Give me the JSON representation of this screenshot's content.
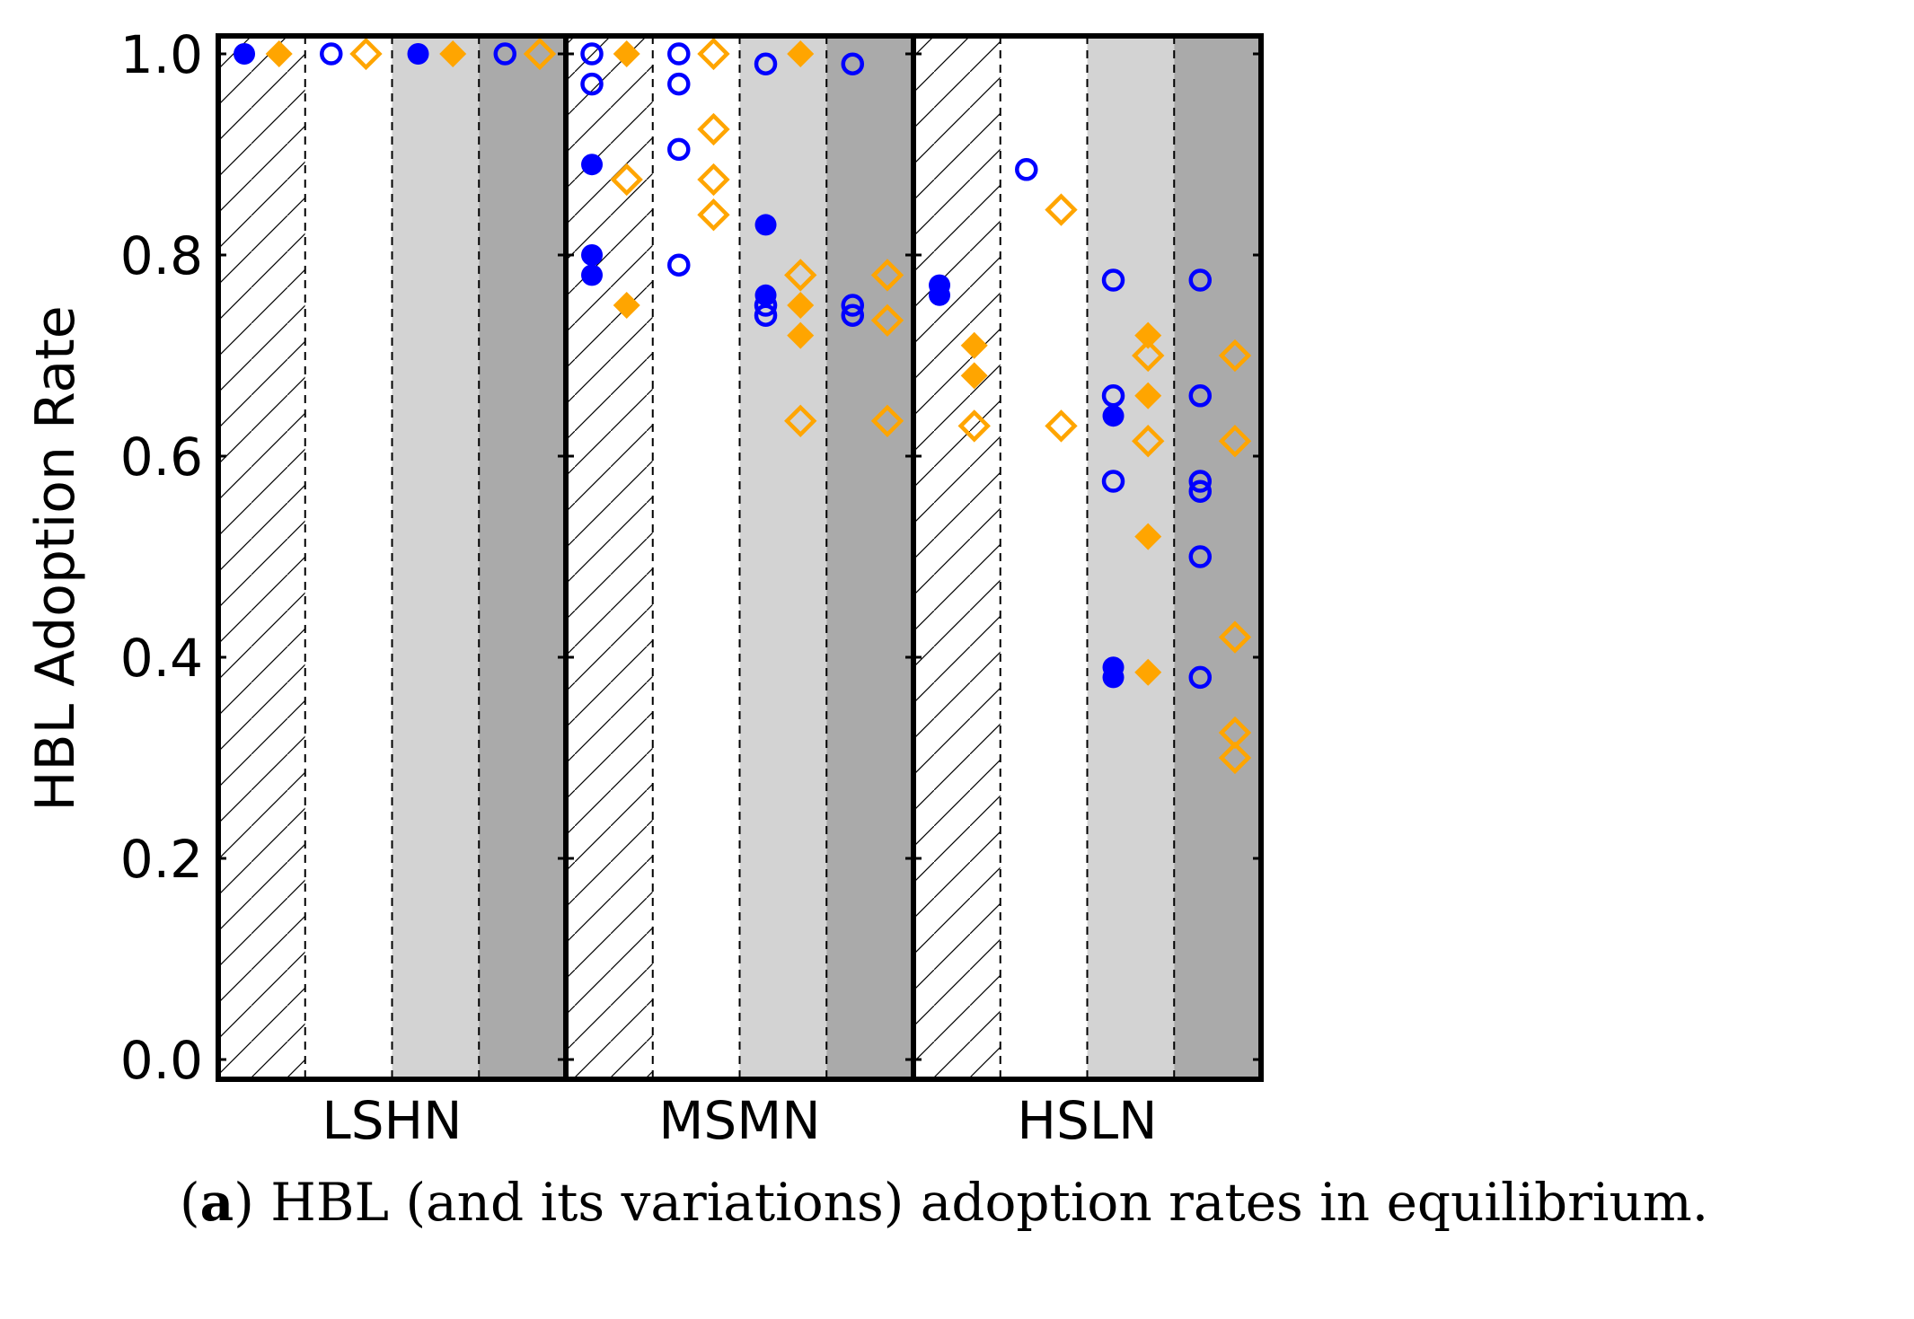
{
  "chart_data": {
    "type": "scatter",
    "ylabel": "HBL Adoption Rate",
    "ylim": [
      0.0,
      1.0
    ],
    "yticks": [
      "0.0",
      "0.2",
      "0.4",
      "0.6",
      "0.8",
      "1.0"
    ],
    "groups": [
      "LSHN",
      "MSMN",
      "HSLN"
    ],
    "subcolumns_per_group": 4,
    "subcolumn_backgrounds": [
      "hatched",
      "white",
      "#d3d3d3",
      "#aaaaaa"
    ],
    "series": [
      {
        "name": "blue filled",
        "color": "#0000ff",
        "marker": "circle",
        "filled": true,
        "points": [
          {
            "group": "LSHN",
            "sub": 0,
            "y": 1.0
          },
          {
            "group": "LSHN",
            "sub": 2,
            "y": 1.0
          },
          {
            "group": "MSMN",
            "sub": 0,
            "y": 0.89
          },
          {
            "group": "MSMN",
            "sub": 0,
            "y": 0.8
          },
          {
            "group": "MSMN",
            "sub": 0,
            "y": 0.78
          },
          {
            "group": "MSMN",
            "sub": 2,
            "y": 0.83
          },
          {
            "group": "MSMN",
            "sub": 2,
            "y": 0.76
          },
          {
            "group": "HSLN",
            "sub": 0,
            "y": 0.77
          },
          {
            "group": "HSLN",
            "sub": 0,
            "y": 0.76
          },
          {
            "group": "HSLN",
            "sub": 2,
            "y": 0.64
          },
          {
            "group": "HSLN",
            "sub": 2,
            "y": 0.39
          },
          {
            "group": "HSLN",
            "sub": 2,
            "y": 0.38
          }
        ]
      },
      {
        "name": "orange filled",
        "color": "#ffa500",
        "marker": "diamond",
        "filled": true,
        "points": [
          {
            "group": "LSHN",
            "sub": 0,
            "y": 1.0
          },
          {
            "group": "LSHN",
            "sub": 2,
            "y": 1.0
          },
          {
            "group": "MSMN",
            "sub": 0,
            "y": 1.0
          },
          {
            "group": "MSMN",
            "sub": 0,
            "y": 0.75
          },
          {
            "group": "MSMN",
            "sub": 2,
            "y": 1.0
          },
          {
            "group": "MSMN",
            "sub": 2,
            "y": 0.75
          },
          {
            "group": "MSMN",
            "sub": 2,
            "y": 0.72
          },
          {
            "group": "HSLN",
            "sub": 0,
            "y": 0.71
          },
          {
            "group": "HSLN",
            "sub": 0,
            "y": 0.68
          },
          {
            "group": "HSLN",
            "sub": 2,
            "y": 0.72
          },
          {
            "group": "HSLN",
            "sub": 2,
            "y": 0.66
          },
          {
            "group": "HSLN",
            "sub": 2,
            "y": 0.52
          },
          {
            "group": "HSLN",
            "sub": 2,
            "y": 0.385
          }
        ]
      },
      {
        "name": "blue open",
        "color": "#0000ff",
        "marker": "circle",
        "filled": false,
        "points": [
          {
            "group": "LSHN",
            "sub": 1,
            "y": 1.0
          },
          {
            "group": "LSHN",
            "sub": 3,
            "y": 1.0
          },
          {
            "group": "MSMN",
            "sub": 0,
            "y": 1.0
          },
          {
            "group": "MSMN",
            "sub": 0,
            "y": 0.97
          },
          {
            "group": "MSMN",
            "sub": 1,
            "y": 1.0
          },
          {
            "group": "MSMN",
            "sub": 1,
            "y": 0.97
          },
          {
            "group": "MSMN",
            "sub": 1,
            "y": 0.905
          },
          {
            "group": "MSMN",
            "sub": 1,
            "y": 0.79
          },
          {
            "group": "MSMN",
            "sub": 2,
            "y": 0.99
          },
          {
            "group": "MSMN",
            "sub": 2,
            "y": 0.75
          },
          {
            "group": "MSMN",
            "sub": 2,
            "y": 0.74
          },
          {
            "group": "MSMN",
            "sub": 3,
            "y": 0.99
          },
          {
            "group": "MSMN",
            "sub": 3,
            "y": 0.75
          },
          {
            "group": "MSMN",
            "sub": 3,
            "y": 0.74
          },
          {
            "group": "HSLN",
            "sub": 1,
            "y": 0.885
          },
          {
            "group": "HSLN",
            "sub": 2,
            "y": 0.775
          },
          {
            "group": "HSLN",
            "sub": 2,
            "y": 0.66
          },
          {
            "group": "HSLN",
            "sub": 2,
            "y": 0.575
          },
          {
            "group": "HSLN",
            "sub": 3,
            "y": 0.775
          },
          {
            "group": "HSLN",
            "sub": 3,
            "y": 0.66
          },
          {
            "group": "HSLN",
            "sub": 3,
            "y": 0.575
          },
          {
            "group": "HSLN",
            "sub": 3,
            "y": 0.565
          },
          {
            "group": "HSLN",
            "sub": 3,
            "y": 0.5
          },
          {
            "group": "HSLN",
            "sub": 3,
            "y": 0.38
          }
        ]
      },
      {
        "name": "orange open",
        "color": "#ffa500",
        "marker": "diamond",
        "filled": false,
        "points": [
          {
            "group": "LSHN",
            "sub": 1,
            "y": 1.0
          },
          {
            "group": "LSHN",
            "sub": 3,
            "y": 1.0
          },
          {
            "group": "MSMN",
            "sub": 0,
            "y": 0.875
          },
          {
            "group": "MSMN",
            "sub": 1,
            "y": 1.0
          },
          {
            "group": "MSMN",
            "sub": 1,
            "y": 0.925
          },
          {
            "group": "MSMN",
            "sub": 1,
            "y": 0.875
          },
          {
            "group": "MSMN",
            "sub": 1,
            "y": 0.84
          },
          {
            "group": "MSMN",
            "sub": 2,
            "y": 0.78
          },
          {
            "group": "MSMN",
            "sub": 2,
            "y": 0.635
          },
          {
            "group": "MSMN",
            "sub": 3,
            "y": 0.78
          },
          {
            "group": "MSMN",
            "sub": 3,
            "y": 0.735
          },
          {
            "group": "MSMN",
            "sub": 3,
            "y": 0.635
          },
          {
            "group": "HSLN",
            "sub": 0,
            "y": 0.63
          },
          {
            "group": "HSLN",
            "sub": 1,
            "y": 0.845
          },
          {
            "group": "HSLN",
            "sub": 1,
            "y": 0.63
          },
          {
            "group": "HSLN",
            "sub": 2,
            "y": 0.7
          },
          {
            "group": "HSLN",
            "sub": 2,
            "y": 0.615
          },
          {
            "group": "HSLN",
            "sub": 3,
            "y": 0.7
          },
          {
            "group": "HSLN",
            "sub": 3,
            "y": 0.615
          },
          {
            "group": "HSLN",
            "sub": 3,
            "y": 0.42
          },
          {
            "group": "HSLN",
            "sub": 3,
            "y": 0.325
          },
          {
            "group": "HSLN",
            "sub": 3,
            "y": 0.3
          }
        ]
      }
    ]
  },
  "caption": {
    "prefix": "(",
    "letter": "a",
    "text": ") HBL (and its variations) adoption rates in equilibrium."
  }
}
